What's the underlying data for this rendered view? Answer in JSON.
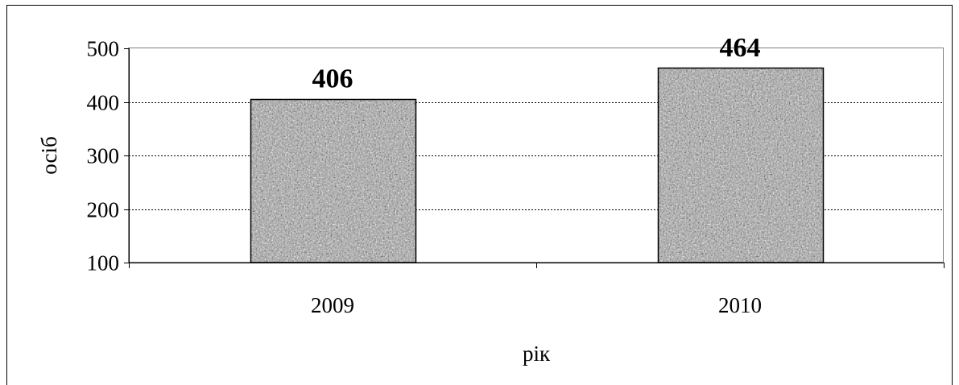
{
  "chart_data": {
    "type": "bar",
    "categories": [
      "2009",
      "2010"
    ],
    "values": [
      406,
      464
    ],
    "data_labels": [
      "406",
      "464"
    ],
    "title": "",
    "xlabel": "рік",
    "ylabel": "осіб",
    "ylim": [
      100,
      500
    ],
    "yticks": [
      100,
      200,
      300,
      400,
      500
    ],
    "ytick_labels": [
      "100",
      "200",
      "300",
      "400",
      "500"
    ],
    "grid": true,
    "grid_style": "dotted",
    "bar_fill": "grey granite texture",
    "colors": {
      "bar_base": "#9a9a9a",
      "bar_border": "#000000",
      "axis": "#000000",
      "grid": "#000000",
      "frame": "#000000"
    }
  }
}
